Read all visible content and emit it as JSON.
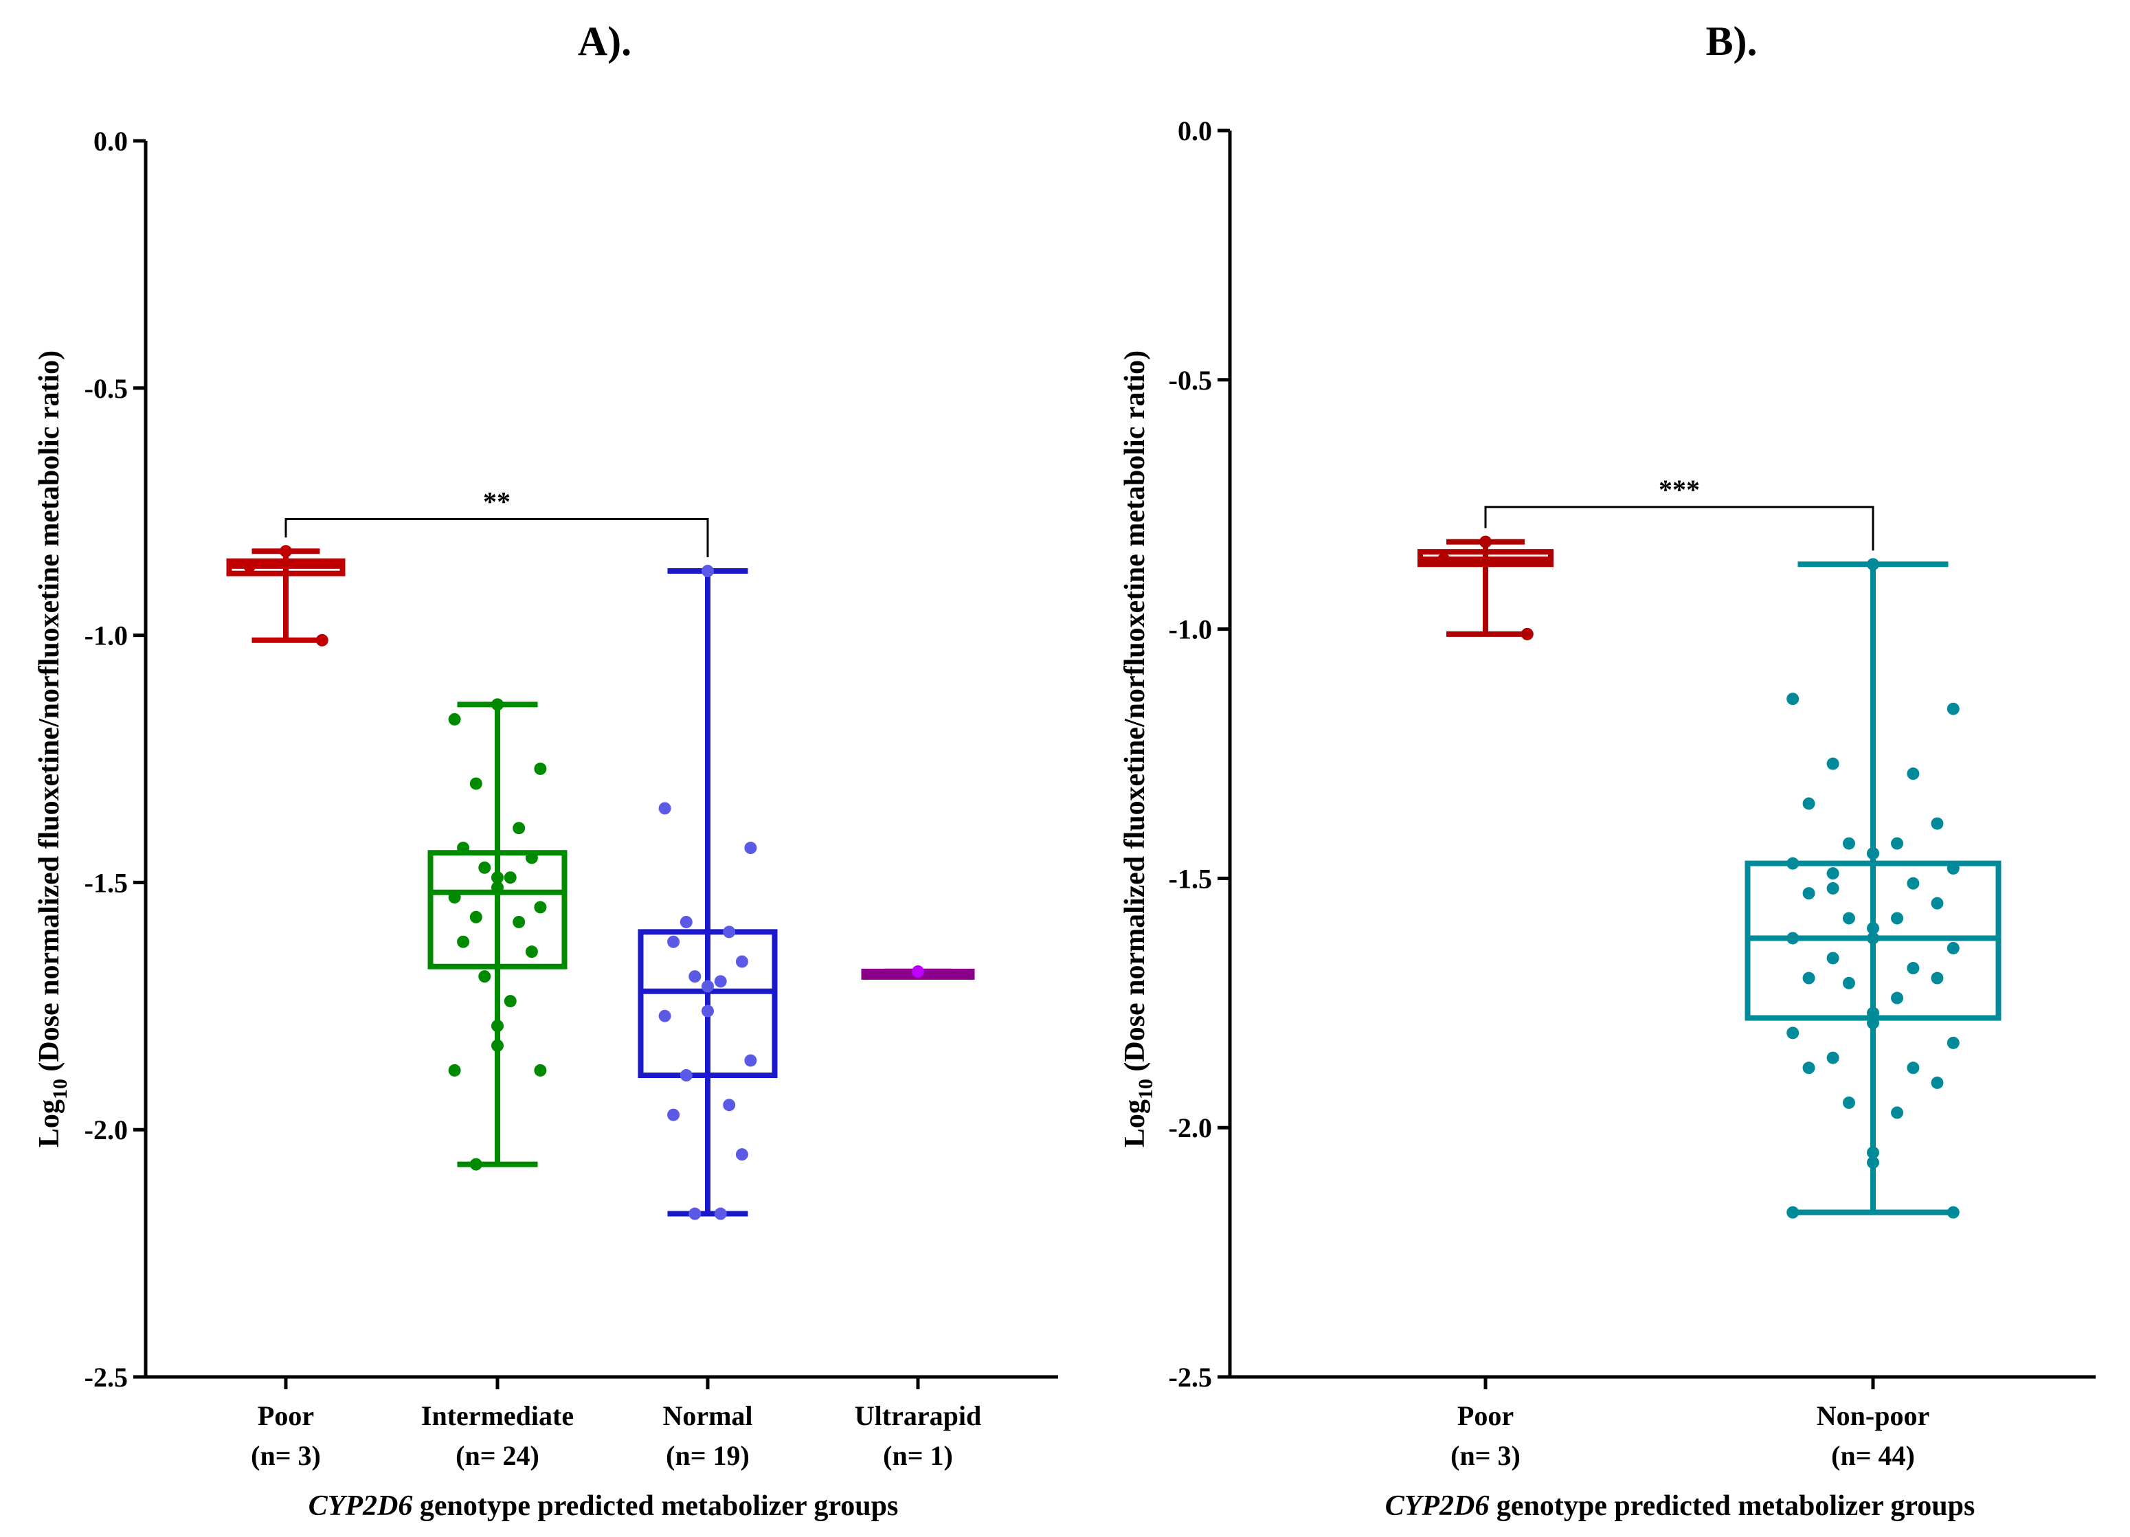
{
  "chart_data": [
    {
      "type": "box",
      "title": "A).",
      "ylabel": {
        "prefix": "Log",
        "sub": "10",
        "rest": " (Dose normalized fluoxetine/norfluoxetine metabolic ratio)"
      },
      "xlabel": {
        "italic": "CYP2D6",
        "rest": " genotype predicted metabolizer groups"
      },
      "ylim": [
        -2.5,
        0.0
      ],
      "yticks": [
        "0.0",
        "-0.5",
        "-1.0",
        "-1.5",
        "-2.0",
        "-2.5"
      ],
      "yticks_values": [
        0.0,
        -0.5,
        -1.0,
        -1.5,
        -2.0,
        -2.5
      ],
      "categories": [
        {
          "name": "Poor",
          "n": "(n= 3)"
        },
        {
          "name": "Intermediate",
          "n": "(n= 24)"
        },
        {
          "name": "Normal",
          "n": "(n= 19)"
        },
        {
          "name": "Ultrarapid",
          "n": "(n= 1)"
        }
      ],
      "boxes": [
        {
          "color": "#c00000",
          "min": -1.01,
          "q1": -0.875,
          "median": -0.86,
          "q3": -0.85,
          "max": -0.83,
          "points": [
            -0.83,
            -0.86,
            -1.01
          ]
        },
        {
          "color": "#008a00",
          "min": -2.07,
          "q1": -1.67,
          "median": -1.52,
          "q3": -1.44,
          "max": -1.14,
          "points": [
            -1.14,
            -1.17,
            -1.27,
            -1.3,
            -1.39,
            -1.43,
            -1.45,
            -1.47,
            -1.49,
            -1.49,
            -1.51,
            -1.53,
            -1.55,
            -1.57,
            -1.58,
            -1.62,
            -1.64,
            -1.69,
            -1.74,
            -1.79,
            -1.83,
            -1.88,
            -1.88,
            -2.07
          ]
        },
        {
          "color": "#1a1acc",
          "pointColor": "#5a5ae6",
          "min": -2.17,
          "q1": -1.89,
          "median": -1.72,
          "q3": -1.6,
          "max": -0.87,
          "points": [
            -0.87,
            -1.35,
            -1.43,
            -1.58,
            -1.6,
            -1.62,
            -1.66,
            -1.69,
            -1.7,
            -1.71,
            -1.76,
            -1.77,
            -1.86,
            -1.89,
            -1.95,
            -1.97,
            -2.05,
            -2.17,
            -2.17
          ]
        },
        {
          "color": "#8a008a",
          "pointColor": "#c000ff",
          "min": -1.68,
          "q1": -1.68,
          "median": -1.68,
          "q3": -1.68,
          "max": -1.68,
          "points": [
            -1.68
          ]
        }
      ],
      "significance": {
        "from": 0,
        "to": 2,
        "y": -0.765,
        "label": "**"
      }
    },
    {
      "type": "box",
      "title": "B).",
      "ylabel": {
        "prefix": "Log",
        "sub": "10",
        "rest": " (Dose normalized fluoxetine/norfluoxetine metabolic ratio)"
      },
      "xlabel": {
        "italic": "CYP2D6",
        "rest": " genotype predicted metabolizer groups"
      },
      "ylim": [
        -2.5,
        0.0
      ],
      "yticks": [
        "0.0",
        "-0.5",
        "-1.0",
        "-1.5",
        "-2.0",
        "-2.5"
      ],
      "yticks_values": [
        0.0,
        -0.5,
        -1.0,
        -1.5,
        -2.0,
        -2.5
      ],
      "categories": [
        {
          "name": "Poor",
          "n": "(n= 3)"
        },
        {
          "name": "Non-poor",
          "n": "(n= 44)"
        }
      ],
      "boxes": [
        {
          "color": "#b00000",
          "min": -1.01,
          "q1": -0.87,
          "median": -0.86,
          "q3": -0.845,
          "max": -0.825,
          "points": [
            -0.825,
            -0.86,
            -1.01
          ]
        },
        {
          "color": "#008a9a",
          "min": -2.17,
          "q1": -1.78,
          "median": -1.62,
          "q3": -1.47,
          "max": -0.87,
          "points": [
            -0.87,
            -1.14,
            -1.16,
            -1.27,
            -1.29,
            -1.35,
            -1.39,
            -1.43,
            -1.43,
            -1.45,
            -1.45,
            -1.47,
            -1.48,
            -1.49,
            -1.51,
            -1.53,
            -1.55,
            -1.58,
            -1.58,
            -1.6,
            -1.62,
            -1.62,
            -1.64,
            -1.66,
            -1.68,
            -1.7,
            -1.7,
            -1.71,
            -1.74,
            -1.77,
            -1.79,
            -1.81,
            -1.83,
            -1.86,
            -1.88,
            -1.88,
            -1.91,
            -1.95,
            -1.97,
            -2.05,
            -2.07,
            -2.17,
            -2.17,
            -1.52
          ]
        }
      ],
      "significance": {
        "from": 0,
        "to": 1,
        "y": -0.755,
        "label": "***"
      }
    }
  ]
}
